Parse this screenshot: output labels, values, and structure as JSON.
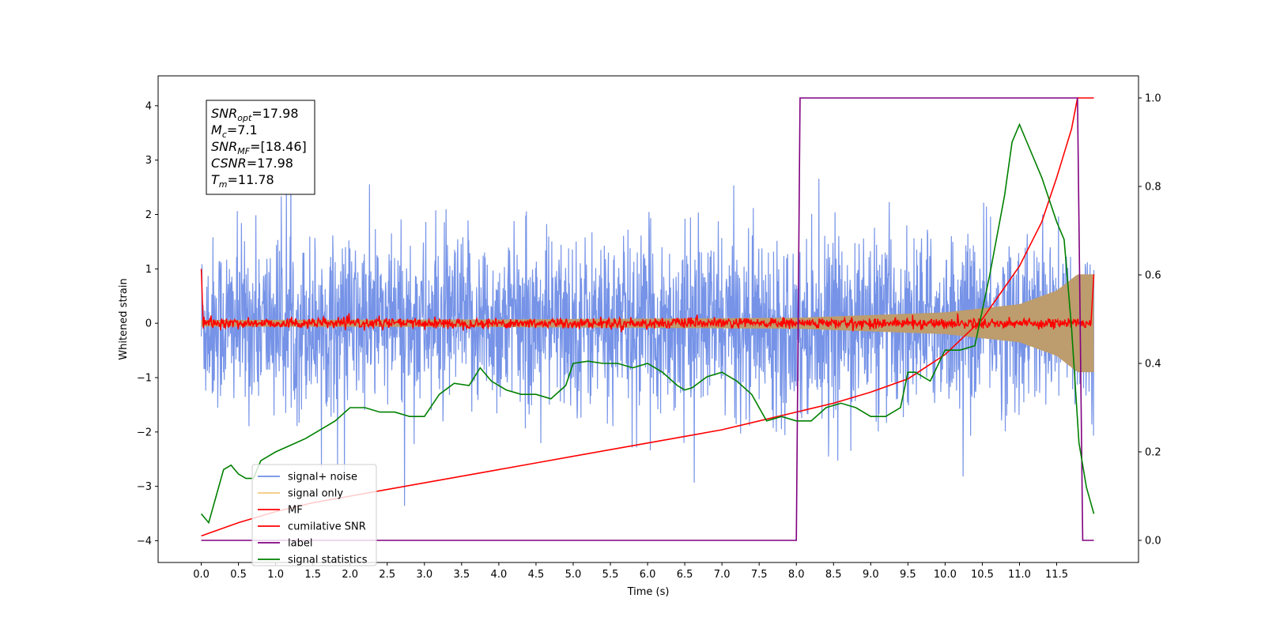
{
  "chart_data": {
    "type": "line",
    "xlabel": "Time (s)",
    "ylabel": "Whitened strain",
    "xlim": [
      -0.58,
      12.6
    ],
    "ylim": [
      -4.4,
      4.55
    ],
    "y2lim": [
      -0.05,
      1.05
    ],
    "xticks": [
      "0.0",
      "0.5",
      "1.0",
      "1.5",
      "2.0",
      "2.5",
      "3.0",
      "3.5",
      "4.0",
      "4.5",
      "5.0",
      "5.5",
      "6.0",
      "6.5",
      "7.0",
      "7.5",
      "8.0",
      "8.5",
      "9.0",
      "9.5",
      "10.0",
      "10.5",
      "11.0",
      "11.5"
    ],
    "yticks": [
      "−4",
      "−3",
      "−2",
      "−1",
      "0",
      "1",
      "2",
      "3",
      "4"
    ],
    "y2ticks": [
      "0.0",
      "0.2",
      "0.4",
      "0.6",
      "0.8",
      "1.0"
    ],
    "info_box": [
      {
        "name": "SNR",
        "sub": "opt",
        "value": "=17.98"
      },
      {
        "name": "M",
        "sub": "c",
        "value": "=7.1"
      },
      {
        "name": "SNR",
        "sub": "MF",
        "value": "=[18.46]"
      },
      {
        "name": "CSNR",
        "sub": "",
        "value": "=17.98"
      },
      {
        "name": "T",
        "sub": "m",
        "value": "=11.78"
      }
    ],
    "legend_position": "lower-left",
    "series": [
      {
        "name": "signal+ noise",
        "color": "#6f8de6",
        "axis": "left",
        "style": "noise",
        "x_range": [
          0,
          12
        ],
        "amplitude_typical": 1.0,
        "y_range": [
          -3.6,
          4.15
        ]
      },
      {
        "name": "signal only",
        "color": "#f5c77e",
        "axis": "left",
        "style": "chirp-envelope",
        "x_range": [
          0,
          12
        ],
        "envelope": [
          [
            0,
            0.06
          ],
          [
            4,
            0.07
          ],
          [
            8,
            0.1
          ],
          [
            10,
            0.2
          ],
          [
            11,
            0.35
          ],
          [
            11.5,
            0.6
          ],
          [
            11.78,
            0.9
          ],
          [
            12,
            0.9
          ]
        ]
      },
      {
        "name": "MF",
        "color": "#ff0000",
        "axis": "left",
        "style": "flat-noise",
        "x_range": [
          0,
          12
        ],
        "start_value": 1.0,
        "end_value": 0.9,
        "amplitude_typical": 0.06
      },
      {
        "name": "cumilative SNR",
        "color": "#ff0000",
        "axis": "right",
        "x": [
          0.0,
          0.5,
          1.0,
          1.5,
          2.0,
          2.5,
          3.0,
          3.5,
          4.0,
          4.5,
          5.0,
          5.5,
          6.0,
          6.5,
          7.0,
          7.5,
          8.0,
          8.5,
          9.0,
          9.5,
          10.0,
          10.5,
          11.0,
          11.3,
          11.5,
          11.7,
          11.78,
          12.0
        ],
        "y": [
          0.01,
          0.04,
          0.065,
          0.085,
          0.1,
          0.115,
          0.13,
          0.145,
          0.16,
          0.175,
          0.19,
          0.205,
          0.22,
          0.235,
          0.25,
          0.27,
          0.29,
          0.31,
          0.335,
          0.365,
          0.42,
          0.5,
          0.62,
          0.72,
          0.82,
          0.93,
          1.0,
          1.0
        ]
      },
      {
        "name": "label",
        "color": "#800080",
        "axis": "right",
        "x": [
          0.0,
          8.0,
          8.05,
          11.78,
          11.85,
          12.0
        ],
        "y": [
          0.0,
          0.0,
          1.0,
          1.0,
          0.0,
          0.0
        ]
      },
      {
        "name": "signal statistics",
        "color": "#008000",
        "axis": "right",
        "x": [
          0.0,
          0.1,
          0.2,
          0.3,
          0.4,
          0.5,
          0.6,
          0.7,
          0.8,
          0.9,
          1.0,
          1.2,
          1.4,
          1.6,
          1.8,
          2.0,
          2.2,
          2.4,
          2.6,
          2.8,
          3.0,
          3.2,
          3.4,
          3.6,
          3.75,
          3.9,
          4.1,
          4.3,
          4.5,
          4.7,
          4.9,
          5.0,
          5.2,
          5.4,
          5.6,
          5.8,
          6.0,
          6.2,
          6.4,
          6.5,
          6.6,
          6.8,
          7.0,
          7.2,
          7.4,
          7.6,
          7.8,
          8.0,
          8.2,
          8.4,
          8.6,
          8.8,
          9.0,
          9.2,
          9.4,
          9.5,
          9.6,
          9.8,
          10.0,
          10.2,
          10.4,
          10.6,
          10.8,
          10.9,
          11.0,
          11.1,
          11.3,
          11.5,
          11.6,
          11.7,
          11.8,
          11.9,
          12.0
        ],
        "y": [
          0.06,
          0.04,
          0.1,
          0.16,
          0.17,
          0.15,
          0.14,
          0.14,
          0.18,
          0.19,
          0.2,
          0.215,
          0.23,
          0.25,
          0.27,
          0.3,
          0.3,
          0.29,
          0.29,
          0.28,
          0.28,
          0.33,
          0.355,
          0.35,
          0.39,
          0.36,
          0.34,
          0.33,
          0.33,
          0.32,
          0.35,
          0.4,
          0.405,
          0.4,
          0.4,
          0.39,
          0.4,
          0.38,
          0.35,
          0.34,
          0.345,
          0.37,
          0.38,
          0.36,
          0.33,
          0.27,
          0.28,
          0.27,
          0.27,
          0.3,
          0.31,
          0.3,
          0.28,
          0.28,
          0.3,
          0.38,
          0.38,
          0.36,
          0.43,
          0.43,
          0.44,
          0.6,
          0.78,
          0.9,
          0.94,
          0.9,
          0.82,
          0.72,
          0.68,
          0.48,
          0.22,
          0.12,
          0.06
        ]
      }
    ]
  }
}
